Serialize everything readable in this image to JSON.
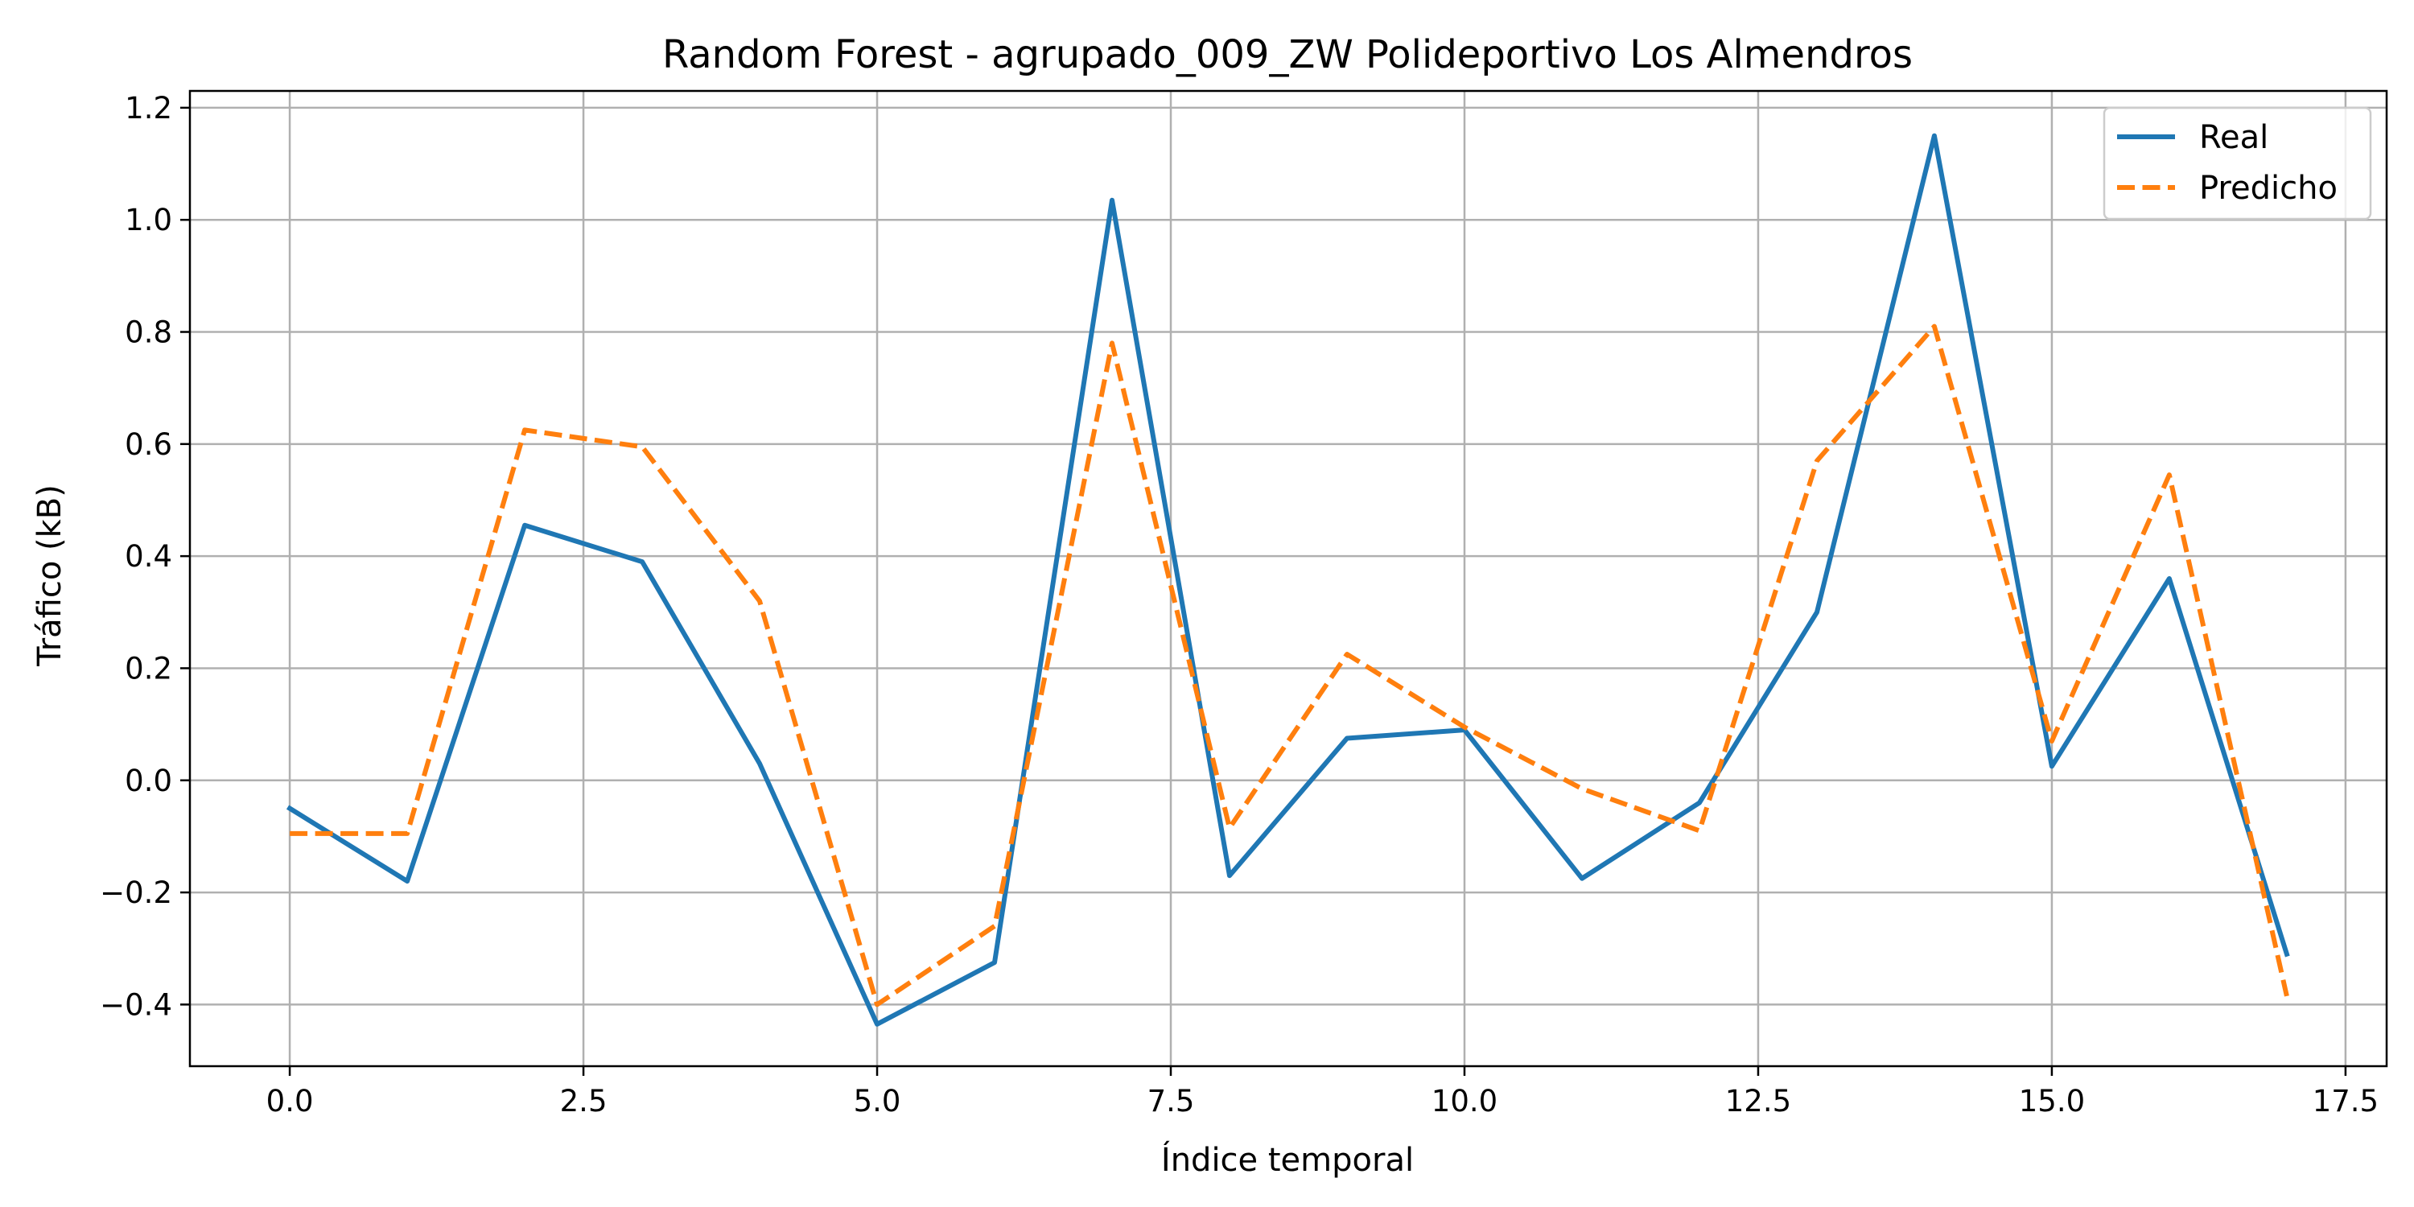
{
  "chart_data": {
    "type": "line",
    "title": "Random Forest - agrupado_009_ZW Polideportivo Los Almendros",
    "xlabel": "Índice temporal",
    "ylabel": "Tráfico (kB)",
    "xlim": [
      -0.85,
      17.85
    ],
    "ylim": [
      -0.51,
      1.23
    ],
    "x_ticks": [
      0.0,
      2.5,
      5.0,
      7.5,
      10.0,
      12.5,
      15.0,
      17.5
    ],
    "x_tick_labels": [
      "0.0",
      "2.5",
      "5.0",
      "7.5",
      "10.0",
      "12.5",
      "15.0",
      "17.5"
    ],
    "y_ticks": [
      -0.4,
      -0.2,
      0.0,
      0.2,
      0.4,
      0.6,
      0.8,
      1.0,
      1.2
    ],
    "y_tick_labels": [
      "−0.4",
      "−0.2",
      "0.0",
      "0.2",
      "0.4",
      "0.6",
      "0.8",
      "1.0",
      "1.2"
    ],
    "grid": true,
    "legend_position": "top-right",
    "x": [
      0,
      1,
      2,
      3,
      4,
      5,
      6,
      7,
      8,
      9,
      10,
      11,
      12,
      13,
      14,
      15,
      16,
      17
    ],
    "series": [
      {
        "name": "Real",
        "color": "#1f77b4",
        "style": "solid",
        "values": [
          -0.05,
          -0.18,
          0.455,
          0.39,
          0.03,
          -0.435,
          -0.325,
          1.035,
          -0.17,
          0.075,
          0.09,
          -0.175,
          -0.04,
          0.3,
          1.15,
          0.025,
          0.36,
          -0.31
        ]
      },
      {
        "name": "Predicho",
        "color": "#ff7f0e",
        "style": "dashed",
        "values": [
          -0.095,
          -0.095,
          0.625,
          0.595,
          0.32,
          -0.4,
          -0.26,
          0.78,
          -0.085,
          0.225,
          0.095,
          -0.015,
          -0.09,
          0.57,
          0.81,
          0.07,
          0.545,
          -0.385
        ]
      }
    ]
  }
}
